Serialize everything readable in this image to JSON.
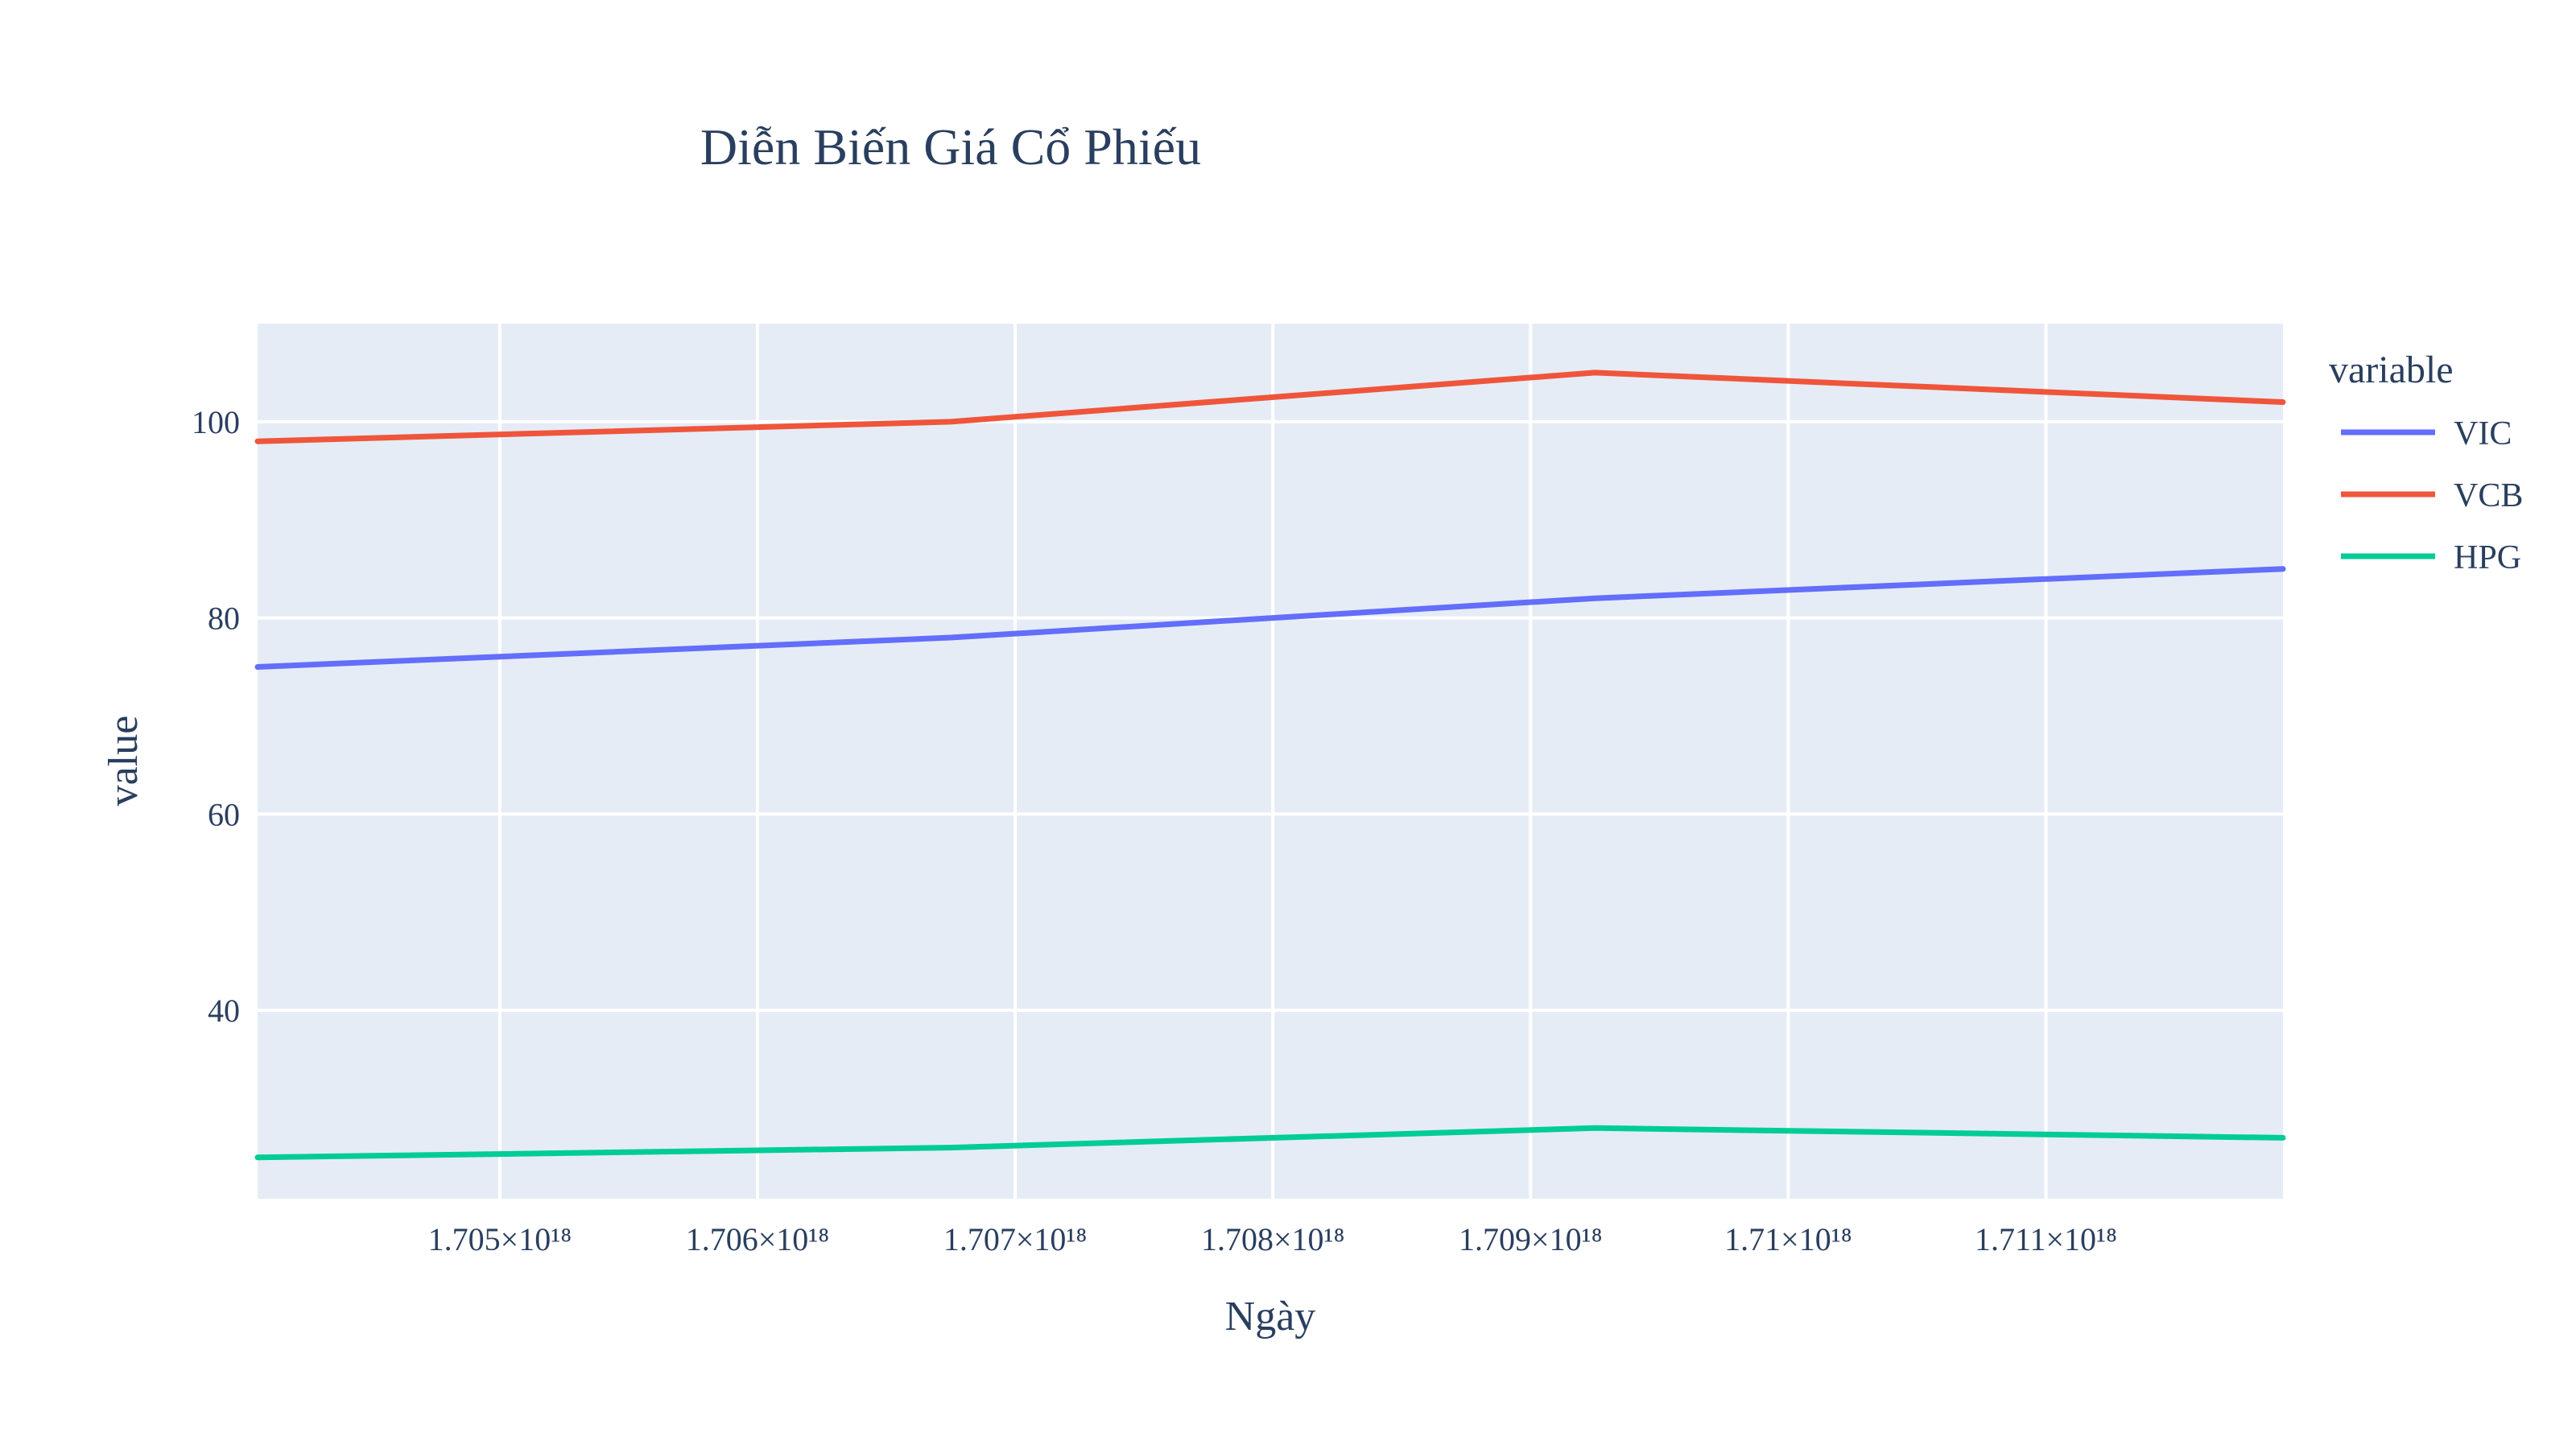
{
  "chart_data": {
    "type": "line",
    "title": "Diễn Biến Giá Cổ Phiếu",
    "xlabel": "Ngày",
    "ylabel": "value",
    "legend_title": "variable",
    "legend_position": "top-right",
    "grid": true,
    "plot_background": "#e5ecf6",
    "x_tick_labels": [
      "1.705×10¹⁸",
      "1.706×10¹⁸",
      "1.707×10¹⁸",
      "1.708×10¹⁸",
      "1.709×10¹⁸",
      "1.71×10¹⁸",
      "1.711×10¹⁸"
    ],
    "x_ticks": [
      1.705e+18,
      1.706e+18,
      1.707e+18,
      1.708e+18,
      1.709e+18,
      1.71e+18,
      1.711e+18
    ],
    "y_ticks": [
      40,
      60,
      80,
      100
    ],
    "xlim": [
      1.70406e+18,
      1.71192e+18
    ],
    "ylim": [
      20.8,
      110
    ],
    "x": [
      1.70406e+18,
      1.70675e+18,
      1.70925e+18,
      1.71192e+18
    ],
    "series": [
      {
        "name": "VIC",
        "color": "#636efa",
        "values": [
          75,
          78,
          82,
          85
        ]
      },
      {
        "name": "VCB",
        "color": "#ef553b",
        "values": [
          98,
          100,
          105,
          102
        ]
      },
      {
        "name": "HPG",
        "color": "#00cc96",
        "values": [
          25,
          26,
          28,
          27
        ]
      }
    ]
  }
}
